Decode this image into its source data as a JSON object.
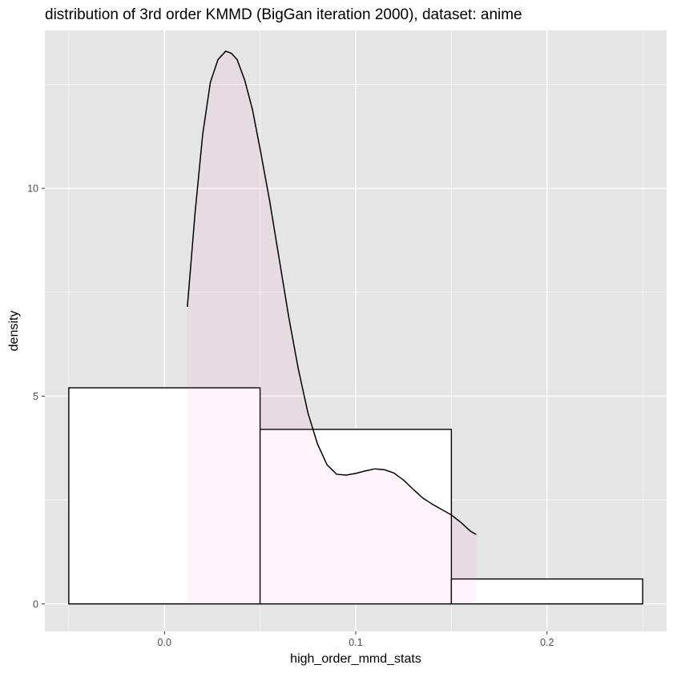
{
  "chart_data": {
    "type": "histogram",
    "title": "distribution of 3rd order KMMD (BigGan iteration 2000), dataset: anime",
    "xlabel": "high_order_mmd_stats",
    "ylabel": "density",
    "xlim": [
      -0.0625,
      0.2625
    ],
    "ylim": [
      -0.66,
      13.8
    ],
    "x_ticks": [
      0.0,
      0.1,
      0.2
    ],
    "x_tick_labels": [
      "0.0",
      "0.1",
      "0.2"
    ],
    "y_ticks": [
      0,
      5,
      10
    ],
    "y_tick_labels": [
      "0",
      "5",
      "10"
    ],
    "grid": true,
    "histogram": {
      "bins": [
        {
          "xmin": -0.05,
          "xmax": 0.05,
          "density": 5.2
        },
        {
          "xmin": 0.05,
          "xmax": 0.15,
          "density": 4.2
        },
        {
          "xmin": 0.15,
          "xmax": 0.25,
          "density": 0.6
        }
      ],
      "fill": "#ffffff",
      "outline": "#000000"
    },
    "density_curve": {
      "fill": "#ff69b4",
      "fill_opacity": 0.07,
      "line": "#000000",
      "x": [
        0.012,
        0.016,
        0.02,
        0.024,
        0.028,
        0.032,
        0.035,
        0.038,
        0.042,
        0.046,
        0.05,
        0.055,
        0.06,
        0.065,
        0.07,
        0.075,
        0.08,
        0.085,
        0.09,
        0.095,
        0.1,
        0.105,
        0.11,
        0.115,
        0.12,
        0.125,
        0.13,
        0.135,
        0.14,
        0.145,
        0.15,
        0.155,
        0.16,
        0.163
      ],
      "y": [
        7.15,
        9.4,
        11.3,
        12.55,
        13.1,
        13.3,
        13.25,
        13.1,
        12.6,
        11.9,
        10.95,
        9.7,
        8.3,
        6.9,
        5.65,
        4.6,
        3.85,
        3.35,
        3.12,
        3.1,
        3.14,
        3.2,
        3.25,
        3.23,
        3.15,
        2.98,
        2.76,
        2.55,
        2.4,
        2.27,
        2.14,
        1.96,
        1.75,
        1.67
      ]
    },
    "background": "#e5e5e5",
    "grid_color": "#ffffff"
  }
}
